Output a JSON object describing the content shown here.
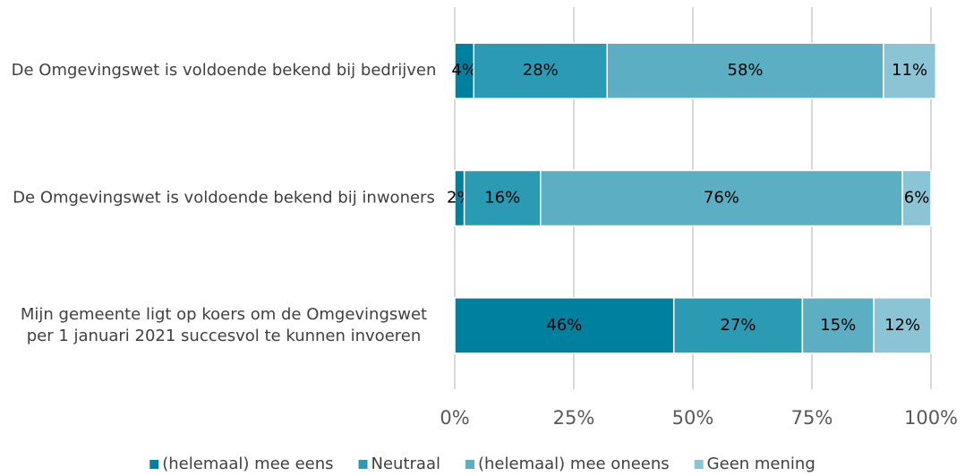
{
  "chart_data": {
    "type": "stacked-barh",
    "categories": [
      "De Omgevingswet is voldoende bekend bij bedrijven",
      "De Omgevingswet is voldoende bekend bij inwoners",
      "Mijn gemeente ligt op koers om de Omgevingswet per 1 januari 2021 succesvol te kunnen invoeren"
    ],
    "series": [
      {
        "name": "(helemaal) mee eens",
        "color": "#00809f",
        "values": [
          4,
          2,
          46
        ],
        "value_labels": [
          "4%",
          "2%",
          "46%"
        ]
      },
      {
        "name": "Neutraal",
        "color": "#2b9ab3",
        "values": [
          28,
          16,
          27
        ],
        "value_labels": [
          "28%",
          "16%",
          "27%"
        ]
      },
      {
        "name": "(helemaal) mee oneens",
        "color": "#5caec3",
        "values": [
          58,
          76,
          15
        ],
        "value_labels": [
          "58%",
          "76%",
          "15%"
        ]
      },
      {
        "name": "Geen mening",
        "color": "#8bc5d5",
        "values": [
          11,
          6,
          12
        ],
        "value_labels": [
          "11%",
          "6%",
          "12%"
        ]
      }
    ],
    "xlim": [
      0,
      100
    ],
    "xticks": [
      {
        "value": 0,
        "label": "0%"
      },
      {
        "value": 25,
        "label": "25%"
      },
      {
        "value": 50,
        "label": "50%"
      },
      {
        "value": 75,
        "label": "75%"
      },
      {
        "value": 100,
        "label": "100%"
      }
    ],
    "grid": true,
    "legend": "bottom"
  }
}
